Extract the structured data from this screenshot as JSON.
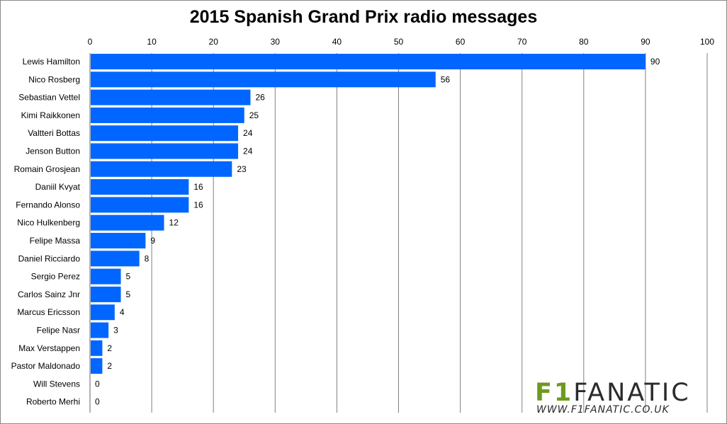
{
  "chart_data": {
    "type": "bar",
    "orientation": "horizontal",
    "title": "2015 Spanish Grand Prix radio messages",
    "categories": [
      "Lewis Hamilton",
      "Nico Rosberg",
      "Sebastian Vettel",
      "Kimi Raikkonen",
      "Valtteri Bottas",
      "Jenson Button",
      "Romain Grosjean",
      "Daniil Kvyat",
      "Fernando Alonso",
      "Nico Hulkenberg",
      "Felipe Massa",
      "Daniel Ricciardo",
      "Sergio Perez",
      "Carlos Sainz Jnr",
      "Marcus Ericsson",
      "Felipe Nasr",
      "Max Verstappen",
      "Pastor Maldonado",
      "Will Stevens",
      "Roberto Merhi"
    ],
    "values": [
      90,
      56,
      26,
      25,
      24,
      24,
      23,
      16,
      16,
      12,
      9,
      8,
      5,
      5,
      4,
      3,
      2,
      2,
      0,
      0
    ],
    "xlim": [
      0,
      100
    ],
    "xticks": [
      0,
      10,
      20,
      30,
      40,
      50,
      60,
      70,
      80,
      90,
      100
    ],
    "xaxis_position": "top",
    "grid": true,
    "bar_color": "#0066ff",
    "gridline_color": "#808080"
  },
  "logo": {
    "brand_f1": "F1",
    "brand_rest": "FANATIC",
    "url": "WWW.F1FANATIC.CO.UK",
    "f1_color": "#6e9a1f",
    "text_color": "#2b2b2b"
  }
}
